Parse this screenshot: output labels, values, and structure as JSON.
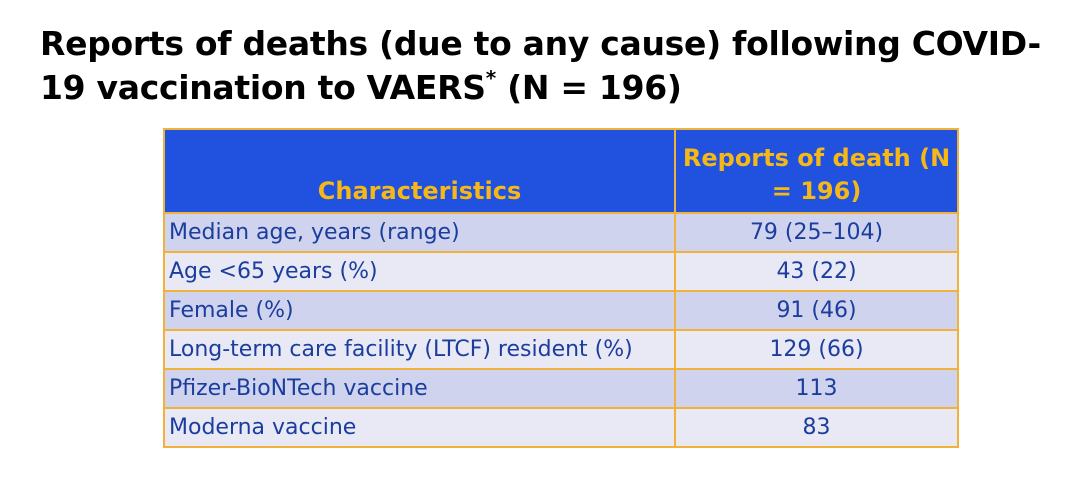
{
  "header": {
    "title": "Reports of deaths (due to any cause) following COVID-19 vaccination to VAERS",
    "footnote_mark": "*",
    "title_suffix": " (N = 196)"
  },
  "table": {
    "columns": [
      "Characteristics",
      "Reports of death (N = 196)"
    ],
    "rows": [
      [
        "Median age, years (range)",
        "79 (25–104)"
      ],
      [
        "Age <65 years (%)",
        "43 (22)"
      ],
      [
        "Female (%)",
        "91 (46)"
      ],
      [
        "Long-term care facility (LTCF) resident (%)",
        "129 (66)"
      ],
      [
        "Pfizer-BioNTech vaccine",
        "113"
      ],
      [
        "Moderna vaccine",
        "83"
      ]
    ]
  }
}
